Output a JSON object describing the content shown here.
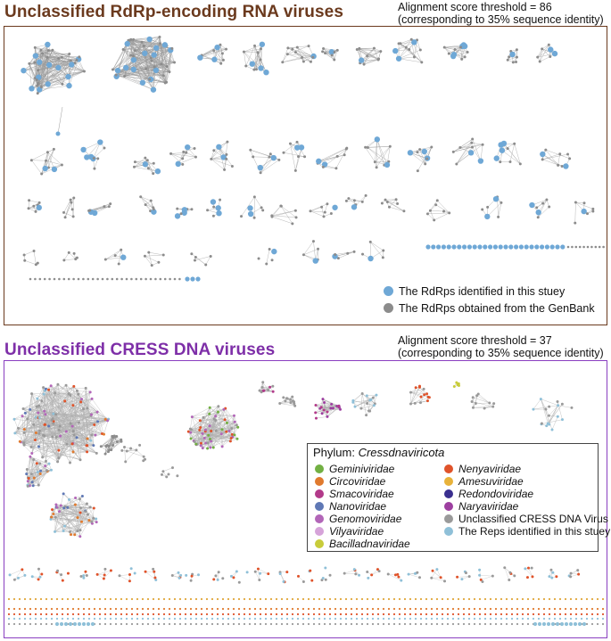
{
  "section_a": {
    "title": "Unclassified RdRp-encoding RNA viruses",
    "threshold_line1": "Alignment score threshold = 86",
    "threshold_line2": "(corresponding to 35% sequence identity)",
    "legend": [
      {
        "label": "The RdRps identified in this stuey",
        "color": "#6fa8d6"
      },
      {
        "label": "The RdRps obtained from the GenBank",
        "color": "#8c8c8c"
      }
    ]
  },
  "section_b": {
    "title": "Unclassified CRESS DNA viruses",
    "threshold_line1": "Alignment score threshold = 37",
    "threshold_line2": "(corresponding to 35% sequence identity)",
    "legend_head_prefix": "Phylum: ",
    "legend_head_taxon": "Cressdnaviricota",
    "legend": [
      {
        "label": "Geminiviridae",
        "color": "#72b043",
        "italic": true
      },
      {
        "label": "Nenyaviridae",
        "color": "#e0532a",
        "italic": true
      },
      {
        "label": "Circoviridae",
        "color": "#e07a2e",
        "italic": true
      },
      {
        "label": "Amesuviridae",
        "color": "#e8b23a",
        "italic": true
      },
      {
        "label": "Smacoviridae",
        "color": "#b23a8a",
        "italic": true
      },
      {
        "label": "Redondoviridae",
        "color": "#3a2f8f",
        "italic": true
      },
      {
        "label": "Nanoviridae",
        "color": "#5f78b5",
        "italic": true
      },
      {
        "label": "Naryaviridae",
        "color": "#9d3fa0",
        "italic": true
      },
      {
        "label": "Genomoviridae",
        "color": "#b266b8",
        "italic": true
      },
      {
        "label": "Unclassified CRESS DNA Virus",
        "color": "#9a9a9a",
        "italic": false
      },
      {
        "label": "Vilyaviridae",
        "color": "#d6a3d9",
        "italic": true
      },
      {
        "label": "The Reps identified in this stuey",
        "color": "#8fc0d8",
        "italic": false
      },
      {
        "label": "Bacilladnaviridae",
        "color": "#c8cc3a",
        "italic": true
      }
    ]
  }
}
